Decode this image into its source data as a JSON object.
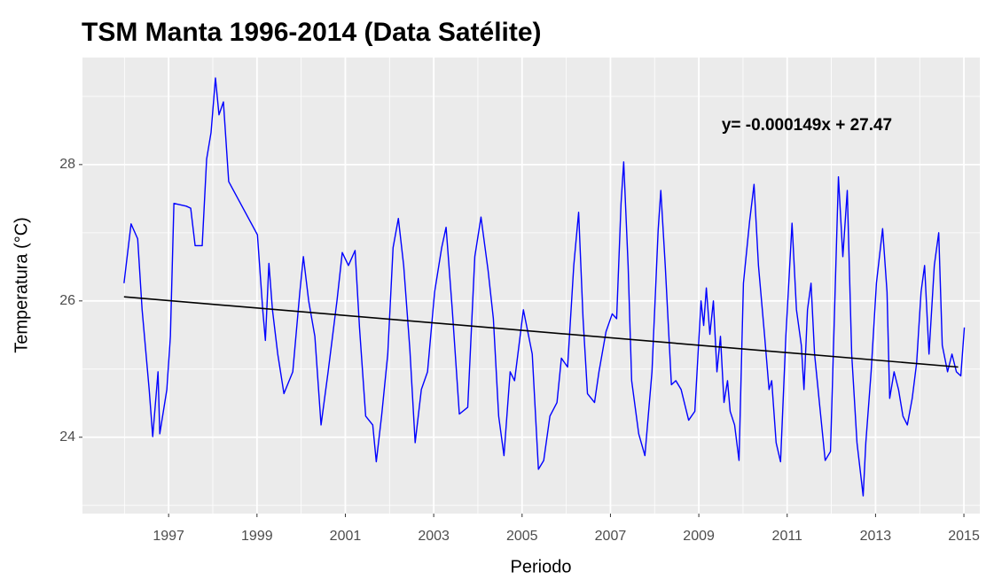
{
  "chart_data": {
    "type": "line",
    "title": "TSM Manta 1996-2014 (Data Satélite)",
    "x_label": "Periodo",
    "y_label": "Temperatura (°C)",
    "annotation": "y= -0.000149x + 27.47",
    "xlim": [
      1995.05,
      2015.36
    ],
    "xticks": [
      1997,
      1999,
      2001,
      2003,
      2005,
      2007,
      2009,
      2011,
      2013,
      2015
    ],
    "ylim": [
      22.88,
      29.57
    ],
    "yticks": [
      24,
      26,
      28
    ],
    "grid": true,
    "series": [
      {
        "color": "#0000ff",
        "x": [
          1995.99,
          1996.15,
          1996.3,
          1996.4,
          1996.56,
          1996.64,
          1996.76,
          1996.8,
          1996.96,
          1997.04,
          1997.12,
          1997.4,
          1997.5,
          1997.6,
          1997.76,
          1997.86,
          1997.96,
          1998.06,
          1998.14,
          1998.24,
          1998.36,
          1999.01,
          1999.13,
          1999.19,
          1999.27,
          1999.35,
          1999.47,
          1999.61,
          1999.81,
          1999.97,
          2000.05,
          2000.17,
          2000.31,
          2000.45,
          2000.61,
          2000.81,
          2000.93,
          2001.07,
          2001.22,
          2001.32,
          2001.46,
          2001.62,
          2001.7,
          2001.82,
          2001.96,
          2002.08,
          2002.2,
          2002.32,
          2002.46,
          2002.58,
          2002.72,
          2002.86,
          2003.02,
          2003.18,
          2003.28,
          2003.42,
          2003.58,
          2003.77,
          2003.93,
          2004.07,
          2004.23,
          2004.35,
          2004.47,
          2004.59,
          2004.73,
          2004.83,
          2004.93,
          2005.03,
          2005.23,
          2005.37,
          2005.49,
          2005.63,
          2005.79,
          2005.89,
          2006.03,
          2006.17,
          2006.28,
          2006.38,
          2006.48,
          2006.64,
          2006.74,
          2006.9,
          2007.04,
          2007.14,
          2007.24,
          2007.3,
          2007.4,
          2007.48,
          2007.64,
          2007.78,
          2007.94,
          2008.08,
          2008.14,
          2008.24,
          2008.38,
          2008.48,
          2008.6,
          2008.77,
          2008.91,
          2009.05,
          2009.11,
          2009.17,
          2009.25,
          2009.33,
          2009.41,
          2009.49,
          2009.57,
          2009.65,
          2009.71,
          2009.81,
          2009.91,
          2010.01,
          2010.15,
          2010.25,
          2010.35,
          2010.49,
          2010.59,
          2010.65,
          2010.75,
          2010.85,
          2010.97,
          2011.11,
          2011.21,
          2011.32,
          2011.38,
          2011.46,
          2011.54,
          2011.62,
          2011.74,
          2011.86,
          2011.98,
          2012.16,
          2012.26,
          2012.36,
          2012.46,
          2012.58,
          2012.72,
          2012.78,
          2012.9,
          2013.02,
          2013.16,
          2013.26,
          2013.32,
          2013.42,
          2013.52,
          2013.62,
          2013.72,
          2013.83,
          2013.93,
          2014.03,
          2014.11,
          2014.21,
          2014.33,
          2014.43,
          2014.51,
          2014.63,
          2014.73,
          2014.83,
          2014.93,
          2015.01
        ],
        "values": [
          26.26,
          27.13,
          26.91,
          25.87,
          24.7,
          24.01,
          24.96,
          24.05,
          24.7,
          25.48,
          27.43,
          27.39,
          27.36,
          26.81,
          26.81,
          28.08,
          28.47,
          29.27,
          28.73,
          28.92,
          27.75,
          26.97,
          25.87,
          25.42,
          26.55,
          25.87,
          25.22,
          24.64,
          24.96,
          26.13,
          26.65,
          26.0,
          25.48,
          24.18,
          24.96,
          26.0,
          26.71,
          26.52,
          26.74,
          25.61,
          24.31,
          24.18,
          23.64,
          24.31,
          25.22,
          26.78,
          27.21,
          26.52,
          25.29,
          23.92,
          24.7,
          24.96,
          26.13,
          26.78,
          27.08,
          25.87,
          24.34,
          24.44,
          26.65,
          27.23,
          26.45,
          25.74,
          24.31,
          23.73,
          24.96,
          24.83,
          25.35,
          25.87,
          25.22,
          23.53,
          23.66,
          24.31,
          24.51,
          25.16,
          25.03,
          26.52,
          27.3,
          25.74,
          24.64,
          24.51,
          24.96,
          25.55,
          25.81,
          25.74,
          27.43,
          28.04,
          26.52,
          24.83,
          24.05,
          23.73,
          24.96,
          27.04,
          27.62,
          26.52,
          24.77,
          24.83,
          24.7,
          24.25,
          24.38,
          26.0,
          25.64,
          26.19,
          25.51,
          26.0,
          24.96,
          25.48,
          24.51,
          24.83,
          24.38,
          24.18,
          23.66,
          26.26,
          27.17,
          27.71,
          26.52,
          25.48,
          24.7,
          24.83,
          23.92,
          23.64,
          25.48,
          27.14,
          25.87,
          25.35,
          24.7,
          25.87,
          26.26,
          25.22,
          24.44,
          23.66,
          23.79,
          27.82,
          26.65,
          27.62,
          25.22,
          23.92,
          23.14,
          23.92,
          24.96,
          26.26,
          27.06,
          26.13,
          24.57,
          24.96,
          24.7,
          24.31,
          24.18,
          24.57,
          25.09,
          26.13,
          26.52,
          25.22,
          26.52,
          27.0,
          25.35,
          24.96,
          25.22,
          24.96,
          24.9,
          25.61
        ]
      },
      {
        "color": "#000000",
        "x": [
          1995.99,
          2014.87
        ],
        "values": [
          26.06,
          25.03
        ]
      }
    ]
  }
}
